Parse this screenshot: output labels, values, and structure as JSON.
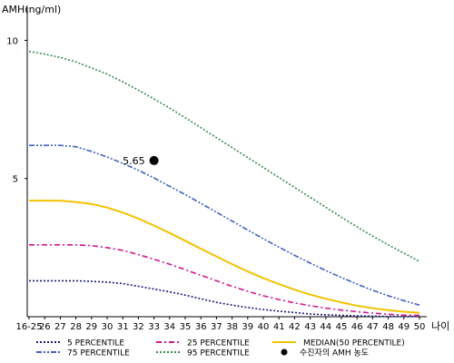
{
  "chart_data": {
    "type": "line",
    "ylabel": "AMH(ng/ml)",
    "xlabel": "나이",
    "ylim": [
      0,
      11
    ],
    "yticks": [
      5,
      10
    ],
    "categories": [
      "16-25",
      "26",
      "27",
      "28",
      "29",
      "30",
      "31",
      "32",
      "33",
      "34",
      "35",
      "36",
      "37",
      "38",
      "39",
      "40",
      "41",
      "42",
      "43",
      "44",
      "45",
      "46",
      "47",
      "48",
      "49",
      "50"
    ],
    "series": [
      {
        "name": "5 PERCENTILE",
        "color": "#1a1a7a",
        "dash": "2,2",
        "values": [
          1.3,
          1.3,
          1.3,
          1.3,
          1.28,
          1.25,
          1.2,
          1.1,
          1.0,
          0.9,
          0.78,
          0.65,
          0.52,
          0.42,
          0.33,
          0.26,
          0.2,
          0.15,
          0.1,
          0.07,
          0.05,
          0.03,
          0.02,
          0.01,
          0.01,
          0.01
        ]
      },
      {
        "name": "25 PERCENTILE",
        "color": "#d4168e",
        "dash": "6,3,2,3",
        "values": [
          2.6,
          2.6,
          2.6,
          2.6,
          2.57,
          2.5,
          2.4,
          2.25,
          2.08,
          1.9,
          1.7,
          1.5,
          1.3,
          1.1,
          0.92,
          0.76,
          0.62,
          0.5,
          0.4,
          0.31,
          0.24,
          0.18,
          0.13,
          0.09,
          0.06,
          0.05
        ]
      },
      {
        "name": "MEDIAN(50 PERCENTILE)",
        "color": "#f2c200",
        "dash": "",
        "values": [
          4.2,
          4.2,
          4.2,
          4.15,
          4.08,
          3.95,
          3.77,
          3.55,
          3.3,
          3.03,
          2.75,
          2.46,
          2.18,
          1.9,
          1.64,
          1.4,
          1.18,
          0.98,
          0.8,
          0.65,
          0.52,
          0.4,
          0.31,
          0.24,
          0.18,
          0.14
        ]
      },
      {
        "name": "75 PERCENTILE",
        "color": "#3f61c4",
        "dash": "6,2,2,2,2,2",
        "values": [
          6.2,
          6.2,
          6.2,
          6.15,
          5.98,
          5.78,
          5.55,
          5.3,
          5.02,
          4.72,
          4.42,
          4.1,
          3.78,
          3.46,
          3.14,
          2.82,
          2.52,
          2.22,
          1.94,
          1.67,
          1.42,
          1.18,
          0.96,
          0.76,
          0.58,
          0.42
        ]
      },
      {
        "name": "95 PERCENTILE",
        "color": "#3a8a4e",
        "dash": "2,2",
        "values": [
          9.6,
          9.5,
          9.38,
          9.22,
          9.0,
          8.78,
          8.5,
          8.2,
          7.88,
          7.55,
          7.2,
          6.84,
          6.48,
          6.12,
          5.76,
          5.4,
          5.04,
          4.68,
          4.32,
          3.96,
          3.6,
          3.25,
          2.92,
          2.6,
          2.3,
          2.0
        ]
      }
    ],
    "points": [
      {
        "name": "수진자의 AMH 농도",
        "x": "33",
        "y": 5.65,
        "label": "5.65",
        "color": "#000000"
      }
    ],
    "legend": {
      "position": "bottom"
    }
  }
}
